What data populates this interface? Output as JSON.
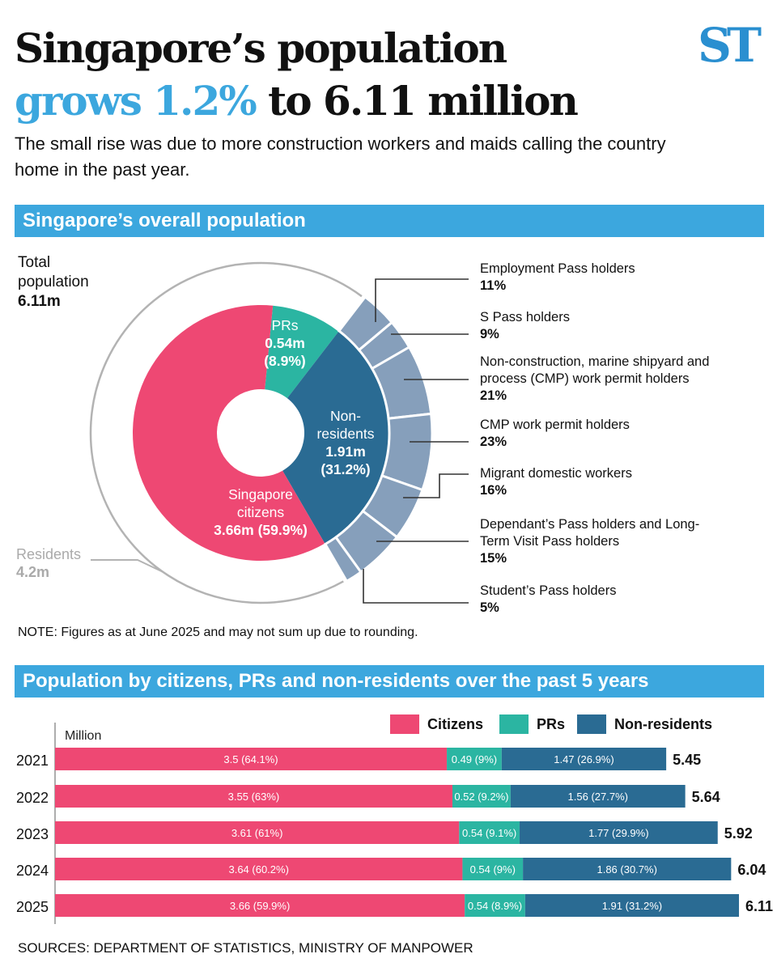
{
  "header": {
    "title_line1": "Singapore’s population",
    "title_highlight": "grows 1.2%",
    "title_rest": "to 6.11 million",
    "logo": "ST",
    "subtitle": "The small rise was due to more construction workers and maids calling the country home in the past year."
  },
  "section1": {
    "heading": "Singapore’s overall population",
    "total_label": "Total population",
    "total_value": "6.11m",
    "residents_label": "Residents",
    "residents_value": "4.2m",
    "note": "NOTE: Figures as at June 2025 and may not sum up due to rounding."
  },
  "section2": {
    "heading": "Population by citizens, PRs and non-residents over the past 5 years"
  },
  "sources": "SOURCES: DEPARTMENT OF STATISTICS, MINISTRY OF MANPOWER",
  "colors": {
    "citizens": "#ee4873",
    "prs": "#2bb5a2",
    "non_residents": "#2a6b93",
    "non_resident_breakdown": "#869fbb",
    "residents_arc": "#b3b3b3",
    "header": "#3ca7de"
  },
  "chart_data": [
    {
      "type": "pie",
      "subtype": "donut",
      "slices": [
        {
          "name": "PRs",
          "label_lines": [
            "PRs",
            "0.54m",
            "(8.9%)"
          ],
          "value": 0.54,
          "percent": 8.9
        },
        {
          "name": "Non-residents",
          "label_lines": [
            "Non-",
            "residents",
            "1.91m",
            "(31.2%)"
          ],
          "value": 1.91,
          "percent": 31.2
        },
        {
          "name": "Singapore citizens",
          "label_lines": [
            "Singapore",
            "citizens",
            "3.66m (59.9%)"
          ],
          "value": 3.66,
          "percent": 59.9
        }
      ],
      "non_resident_breakdown": [
        {
          "label": "Employment Pass holders",
          "percent_label": "11%",
          "percent": 11
        },
        {
          "label": "S Pass holders",
          "percent_label": "9%",
          "percent": 9
        },
        {
          "label": "Non-construction, marine shipyard and process (CMP) work permit holders",
          "percent_label": "21%",
          "percent": 21
        },
        {
          "label": "CMP work permit holders",
          "percent_label": "23%",
          "percent": 23
        },
        {
          "label": "Migrant domestic workers",
          "percent_label": "16%",
          "percent": 16
        },
        {
          "label": "Dependant’s Pass holders and Long-Term Visit Pass holders",
          "percent_label": "15%",
          "percent": 15
        },
        {
          "label": "Student’s Pass holders",
          "percent_label": "5%",
          "percent": 5
        }
      ]
    },
    {
      "type": "bar",
      "orientation": "horizontal",
      "stacked": true,
      "ylabel": "Million",
      "categories": [
        "2021",
        "2022",
        "2023",
        "2024",
        "2025"
      ],
      "legend": {
        "placement": "top-right",
        "entries": [
          "Citizens",
          "PRs",
          "Non-residents"
        ]
      },
      "series": [
        {
          "name": "Citizens",
          "values": [
            3.5,
            3.55,
            3.61,
            3.64,
            3.66
          ],
          "labels": [
            "3.5 (64.1%)",
            "3.55 (63%)",
            "3.61 (61%)",
            "3.64 (60.2%)",
            "3.66 (59.9%)"
          ]
        },
        {
          "name": "PRs",
          "values": [
            0.49,
            0.52,
            0.54,
            0.54,
            0.54
          ],
          "labels": [
            "0.49 (9%)",
            "0.52 (9.2%)",
            "0.54 (9.1%)",
            "0.54 (9%)",
            "0.54 (8.9%)"
          ]
        },
        {
          "name": "Non-residents",
          "values": [
            1.47,
            1.56,
            1.77,
            1.86,
            1.91
          ],
          "labels": [
            "1.47 (26.9%)",
            "1.56 (27.7%)",
            "1.77 (29.9%)",
            "1.86 (30.7%)",
            "1.91 (31.2%)"
          ]
        }
      ],
      "totals": [
        "5.45",
        "5.64",
        "5.92",
        "6.04",
        "6.11"
      ]
    }
  ]
}
